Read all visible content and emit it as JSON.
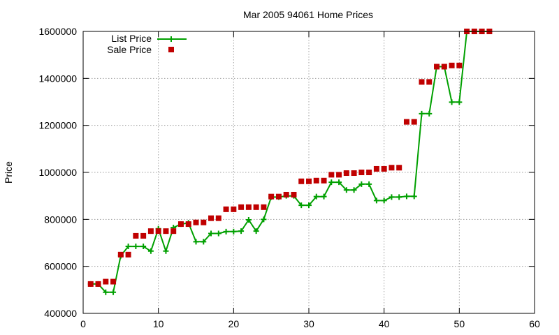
{
  "chart_data": {
    "type": "line",
    "title": "Mar 2005 94061 Home Prices",
    "xlabel": "",
    "ylabel": "Price",
    "xlim": [
      0,
      60
    ],
    "ylim": [
      400000,
      1600000
    ],
    "xticks": [
      "0",
      "10",
      "20",
      "30",
      "40",
      "50",
      "60"
    ],
    "yticks": [
      "400000",
      "600000",
      "800000",
      "1000000",
      "1200000",
      "1400000",
      "1600000"
    ],
    "grid": true,
    "legend": "top-left",
    "x": [
      1,
      2,
      3,
      4,
      5,
      6,
      7,
      8,
      9,
      10,
      11,
      12,
      13,
      14,
      15,
      16,
      17,
      18,
      19,
      20,
      21,
      22,
      23,
      24,
      25,
      26,
      27,
      28,
      29,
      30,
      31,
      32,
      33,
      34,
      35,
      36,
      37,
      38,
      39,
      40,
      41,
      42,
      43,
      44,
      45,
      46,
      47,
      48,
      49,
      50,
      51,
      52,
      53,
      54
    ],
    "series": [
      {
        "name": "List Price",
        "style": "line+cross",
        "color": "#00a000",
        "values": [
          525000,
          525000,
          490000,
          490000,
          645000,
          685000,
          685000,
          685000,
          665000,
          760000,
          665000,
          765000,
          780000,
          785000,
          705000,
          705000,
          740000,
          740000,
          748000,
          748000,
          750000,
          798000,
          750000,
          800000,
          895000,
          895000,
          900000,
          900000,
          860000,
          860000,
          897000,
          897000,
          958000,
          958000,
          925000,
          925000,
          950000,
          950000,
          880000,
          880000,
          895000,
          895000,
          898000,
          898000,
          1250000,
          1250000,
          1450000,
          1450000,
          1299000,
          1299000,
          1600000,
          1600000,
          1600000,
          1600000
        ]
      },
      {
        "name": "Sale Price",
        "style": "square",
        "color": "#c00000",
        "values": [
          525000,
          525000,
          535000,
          535000,
          650000,
          650000,
          730000,
          730000,
          750000,
          750000,
          750000,
          750000,
          780000,
          780000,
          787000,
          787000,
          805000,
          805000,
          843000,
          843000,
          852000,
          852000,
          852000,
          852000,
          897000,
          897000,
          905000,
          905000,
          962000,
          962000,
          965000,
          965000,
          990000,
          990000,
          997000,
          997000,
          1000000,
          1000000,
          1015000,
          1015000,
          1020000,
          1020000,
          1215000,
          1215000,
          1385000,
          1385000,
          1450000,
          1450000,
          1455000,
          1455000,
          1600000,
          1600000,
          1600000,
          1600000
        ]
      }
    ]
  }
}
